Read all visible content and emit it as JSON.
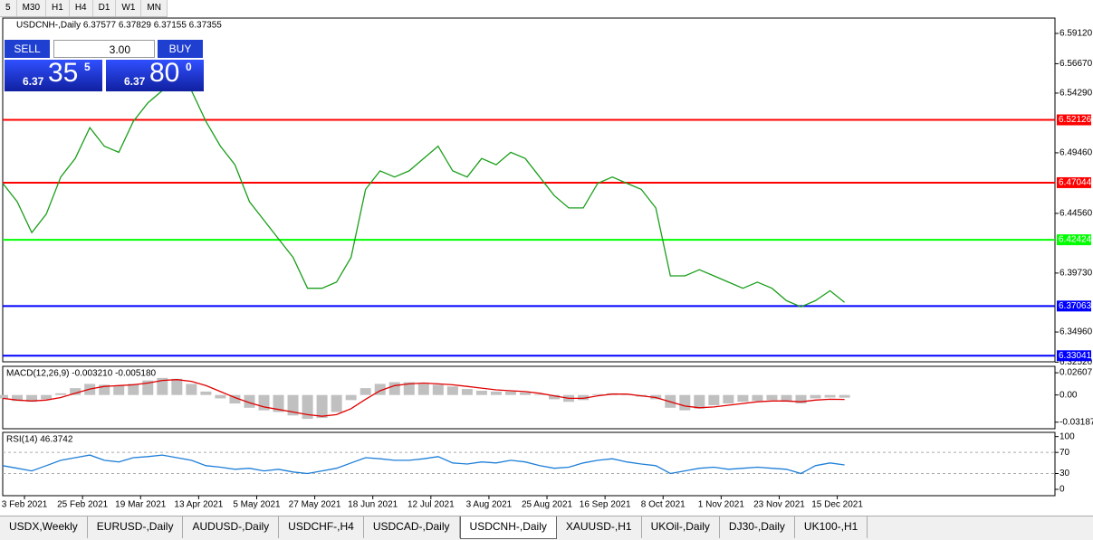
{
  "toolbar": {
    "timeframes": [
      "5",
      "M30",
      "H1",
      "H4",
      "D1",
      "W1",
      "MN"
    ]
  },
  "trade_panel": {
    "sell": "SELL",
    "buy": "BUY",
    "volume": "3.00",
    "bid_big": "6.37",
    "bid_pips": "35",
    "bid_frac": "5",
    "ask_big": "6.37",
    "ask_pips": "80",
    "ask_frac": "0"
  },
  "tabs": {
    "items": [
      "USDX,Weekly",
      "EURUSD-,Daily",
      "AUDUSD-,Daily",
      "USDCHF-,H4",
      "USDCAD-,Daily",
      "USDCNH-,Daily",
      "XAUUSD-,H1",
      "UKOil-,Daily",
      "DJ30-,Daily",
      "UK100-,H1"
    ],
    "active": 5
  },
  "chart_data": [
    {
      "type": "line",
      "title": "USDCNH-,Daily 6.37577 6.37829 6.37155 6.37355",
      "x": [
        0,
        4,
        8,
        12,
        16,
        20,
        24,
        28,
        32,
        36,
        40,
        44,
        48,
        52,
        56,
        60,
        64,
        68,
        72,
        76,
        80,
        84,
        88,
        92,
        96,
        100,
        104,
        108,
        112,
        116,
        120,
        124,
        128,
        132,
        136,
        140,
        144,
        148,
        152,
        156,
        160,
        164,
        168,
        172,
        176,
        180,
        184,
        188,
        192,
        196,
        200,
        204,
        208,
        212,
        216,
        220,
        224,
        228,
        232
      ],
      "series": [
        {
          "color": "#1a9e1a",
          "values": [
            6.47,
            6.455,
            6.43,
            6.445,
            6.475,
            6.49,
            6.515,
            6.5,
            6.495,
            6.52,
            6.535,
            6.545,
            6.55,
            6.545,
            6.52,
            6.5,
            6.485,
            6.455,
            6.44,
            6.425,
            6.41,
            6.385,
            6.385,
            6.39,
            6.41,
            6.465,
            6.48,
            6.475,
            6.48,
            6.49,
            6.5,
            6.48,
            6.475,
            6.49,
            6.485,
            6.495,
            6.49,
            6.475,
            6.46,
            6.45,
            6.45,
            6.47,
            6.475,
            6.47,
            6.465,
            6.45,
            6.395,
            6.395,
            6.4,
            6.395,
            6.39,
            6.385,
            6.39,
            6.385,
            6.375,
            6.37,
            6.375,
            6.383,
            6.37355
          ]
        }
      ],
      "xlim": [
        0,
        290
      ],
      "xticks": [
        {
          "value": 6,
          "label": "3 Feb 2021"
        },
        {
          "value": 22,
          "label": "25 Feb 2021"
        },
        {
          "value": 38,
          "label": "19 Mar 2021"
        },
        {
          "value": 54,
          "label": "13 Apr 2021"
        },
        {
          "value": 70,
          "label": "5 May 2021"
        },
        {
          "value": 86,
          "label": "27 May 2021"
        },
        {
          "value": 102,
          "label": "18 Jun 2021"
        },
        {
          "value": 118,
          "label": "12 Jul 2021"
        },
        {
          "value": 134,
          "label": "3 Aug 2021"
        },
        {
          "value": 150,
          "label": "25 Aug 2021"
        },
        {
          "value": 166,
          "label": "16 Sep 2021"
        },
        {
          "value": 182,
          "label": "8 Oct 2021"
        },
        {
          "value": 198,
          "label": "1 Nov 2021"
        },
        {
          "value": 214,
          "label": "23 Nov 2021"
        },
        {
          "value": 230,
          "label": "15 Dec 2021"
        }
      ],
      "ylim": [
        6.3255,
        6.6036
      ],
      "yticks": [
        {
          "value": 6.5912,
          "label": "6.59120"
        },
        {
          "value": 6.5667,
          "label": "6.56670"
        },
        {
          "value": 6.5429,
          "label": "6.54290"
        },
        {
          "value": 6.4946,
          "label": "6.49460"
        },
        {
          "value": 6.4456,
          "label": "6.44560"
        },
        {
          "value": 6.3973,
          "label": "6.39730"
        },
        {
          "value": 6.3496,
          "label": "6.34960"
        },
        {
          "value": 6.3252,
          "label": "6.32520"
        }
      ],
      "hlines": [
        {
          "value": 6.52126,
          "color": "#ff0000"
        },
        {
          "value": 6.47044,
          "color": "#ff0000"
        },
        {
          "value": 6.42424,
          "color": "#00ff00"
        },
        {
          "value": 6.37063,
          "color": "#0000ff"
        },
        {
          "value": 6.33041,
          "color": "#0000ff"
        }
      ]
    },
    {
      "type": "macd",
      "title": "MACD(12,26,9) -0.003210 -0.005180",
      "x": [
        0,
        4,
        8,
        12,
        16,
        20,
        24,
        28,
        32,
        36,
        40,
        44,
        48,
        52,
        56,
        60,
        64,
        68,
        72,
        76,
        80,
        84,
        88,
        92,
        96,
        100,
        104,
        108,
        112,
        116,
        120,
        124,
        128,
        132,
        136,
        140,
        144,
        148,
        152,
        156,
        160,
        164,
        168,
        172,
        176,
        180,
        184,
        188,
        192,
        196,
        200,
        204,
        208,
        212,
        216,
        220,
        224,
        228,
        232
      ],
      "series": [
        {
          "style": "bar",
          "color": "#c0c0c0",
          "values": [
            -0.004,
            -0.007,
            -0.008,
            -0.005,
            0.002,
            0.008,
            0.013,
            0.012,
            0.011,
            0.013,
            0.017,
            0.02,
            0.019,
            0.013,
            0.004,
            -0.004,
            -0.01,
            -0.015,
            -0.018,
            -0.02,
            -0.024,
            -0.028,
            -0.027,
            -0.02,
            -0.006,
            0.008,
            0.013,
            0.015,
            0.015,
            0.013,
            0.012,
            0.01,
            0.007,
            0.005,
            0.004,
            0.004,
            0.003,
            0.001,
            -0.005,
            -0.008,
            -0.006,
            0.001,
            0.002,
            0.001,
            -0.002,
            -0.005,
            -0.015,
            -0.018,
            -0.016,
            -0.012,
            -0.01,
            -0.008,
            -0.007,
            -0.006,
            -0.008,
            -0.01,
            -0.004,
            -0.003,
            -0.00321
          ]
        },
        {
          "style": "line",
          "color": "#e00000",
          "values": [
            -0.004,
            -0.006,
            -0.007,
            -0.006,
            -0.003,
            0.002,
            0.007,
            0.01,
            0.011,
            0.012,
            0.014,
            0.017,
            0.018,
            0.016,
            0.011,
            0.004,
            -0.003,
            -0.009,
            -0.014,
            -0.017,
            -0.02,
            -0.023,
            -0.025,
            -0.023,
            -0.016,
            -0.005,
            0.005,
            0.011,
            0.013,
            0.014,
            0.013,
            0.012,
            0.01,
            0.008,
            0.006,
            0.005,
            0.004,
            0.002,
            -0.001,
            -0.004,
            -0.004,
            -0.001,
            0.001,
            0.001,
            -0.001,
            -0.003,
            -0.008,
            -0.013,
            -0.015,
            -0.014,
            -0.012,
            -0.01,
            -0.008,
            -0.007,
            -0.007,
            -0.008,
            -0.006,
            -0.005,
            -0.00518
          ]
        }
      ],
      "xlim": [
        0,
        290
      ],
      "ylim": [
        -0.0396,
        0.0336
      ],
      "yticks": [
        0.02607,
        {
          "value": 0,
          "label": "0.00"
        },
        -0.031872
      ]
    },
    {
      "type": "line",
      "title": "RSI(14) 46.3742",
      "x": [
        0,
        4,
        8,
        12,
        16,
        20,
        24,
        28,
        32,
        36,
        40,
        44,
        48,
        52,
        56,
        60,
        64,
        68,
        72,
        76,
        80,
        84,
        88,
        92,
        96,
        100,
        104,
        108,
        112,
        116,
        120,
        124,
        128,
        132,
        136,
        140,
        144,
        148,
        152,
        156,
        160,
        164,
        168,
        172,
        176,
        180,
        184,
        188,
        192,
        196,
        200,
        204,
        208,
        212,
        216,
        220,
        224,
        228,
        232
      ],
      "series": [
        {
          "color": "#1e7fd8",
          "values": [
            45,
            40,
            35,
            45,
            55,
            60,
            65,
            55,
            52,
            60,
            62,
            65,
            60,
            55,
            45,
            42,
            38,
            40,
            35,
            38,
            33,
            30,
            35,
            40,
            50,
            60,
            58,
            55,
            55,
            58,
            62,
            50,
            48,
            52,
            50,
            55,
            52,
            45,
            40,
            42,
            50,
            55,
            58,
            52,
            48,
            45,
            30,
            35,
            40,
            42,
            38,
            40,
            42,
            40,
            38,
            30,
            45,
            50,
            46.37
          ]
        }
      ],
      "xlim": [
        0,
        290
      ],
      "ylim": [
        -12,
        108
      ],
      "yticks": [
        100,
        70,
        30,
        0
      ],
      "grid_levels": [
        70,
        30
      ]
    }
  ]
}
